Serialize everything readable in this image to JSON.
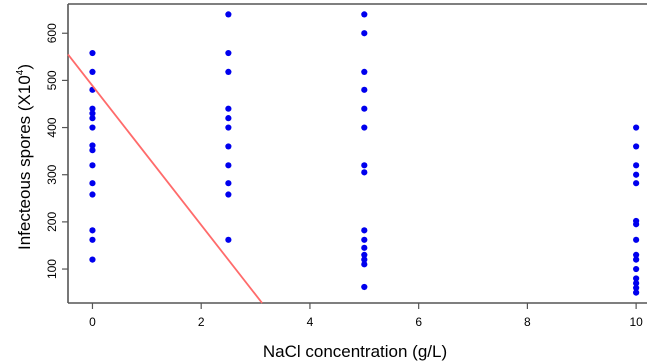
{
  "chart_data": {
    "type": "scatter",
    "title": "",
    "xlabel": "NaCl concentration (g/L)",
    "ylabel": {
      "main": "Infecteous spores (X10",
      "superscript": "4",
      "close": ")"
    },
    "xlim": [
      -0.45,
      10.2
    ],
    "ylim": [
      28,
      662
    ],
    "x_ticks": [
      0,
      2,
      4,
      6,
      8,
      10
    ],
    "x_tick_labels": [
      "0",
      "2",
      "4",
      "6",
      "8",
      "10"
    ],
    "y_ticks": [
      100,
      200,
      300,
      400,
      500,
      600
    ],
    "y_tick_labels": [
      "100",
      "200",
      "300",
      "400",
      "500",
      "600"
    ],
    "grid": false,
    "series": [
      {
        "marker_color": "#0000ee",
        "points": [
          {
            "x": 0,
            "y": 558
          },
          {
            "x": 0,
            "y": 518
          },
          {
            "x": 0,
            "y": 480
          },
          {
            "x": 0,
            "y": 440
          },
          {
            "x": 0,
            "y": 430
          },
          {
            "x": 0,
            "y": 420
          },
          {
            "x": 0,
            "y": 400
          },
          {
            "x": 0,
            "y": 362
          },
          {
            "x": 0,
            "y": 352
          },
          {
            "x": 0,
            "y": 320
          },
          {
            "x": 0,
            "y": 282
          },
          {
            "x": 0,
            "y": 258
          },
          {
            "x": 0,
            "y": 182
          },
          {
            "x": 0,
            "y": 162
          },
          {
            "x": 0,
            "y": 120
          },
          {
            "x": 2.5,
            "y": 640
          },
          {
            "x": 2.5,
            "y": 558
          },
          {
            "x": 2.5,
            "y": 518
          },
          {
            "x": 2.5,
            "y": 440
          },
          {
            "x": 2.5,
            "y": 420
          },
          {
            "x": 2.5,
            "y": 400
          },
          {
            "x": 2.5,
            "y": 360
          },
          {
            "x": 2.5,
            "y": 320
          },
          {
            "x": 2.5,
            "y": 282
          },
          {
            "x": 2.5,
            "y": 258
          },
          {
            "x": 2.5,
            "y": 162
          },
          {
            "x": 5,
            "y": 640
          },
          {
            "x": 5,
            "y": 600
          },
          {
            "x": 5,
            "y": 518
          },
          {
            "x": 5,
            "y": 480
          },
          {
            "x": 5,
            "y": 440
          },
          {
            "x": 5,
            "y": 400
          },
          {
            "x": 5,
            "y": 320
          },
          {
            "x": 5,
            "y": 305
          },
          {
            "x": 5,
            "y": 182
          },
          {
            "x": 5,
            "y": 162
          },
          {
            "x": 5,
            "y": 145
          },
          {
            "x": 5,
            "y": 130
          },
          {
            "x": 5,
            "y": 120
          },
          {
            "x": 5,
            "y": 110
          },
          {
            "x": 5,
            "y": 62
          },
          {
            "x": 10,
            "y": 400
          },
          {
            "x": 10,
            "y": 360
          },
          {
            "x": 10,
            "y": 320
          },
          {
            "x": 10,
            "y": 300
          },
          {
            "x": 10,
            "y": 282
          },
          {
            "x": 10,
            "y": 202
          },
          {
            "x": 10,
            "y": 195
          },
          {
            "x": 10,
            "y": 162
          },
          {
            "x": 10,
            "y": 130
          },
          {
            "x": 10,
            "y": 120
          },
          {
            "x": 10,
            "y": 100
          },
          {
            "x": 10,
            "y": 80
          },
          {
            "x": 10,
            "y": 70
          },
          {
            "x": 10,
            "y": 60
          },
          {
            "x": 10,
            "y": 50
          }
        ]
      }
    ],
    "regression_line": {
      "color": "#ff6b6b",
      "x": [
        -0.45,
        3.12
      ],
      "y": [
        555,
        28
      ]
    }
  }
}
